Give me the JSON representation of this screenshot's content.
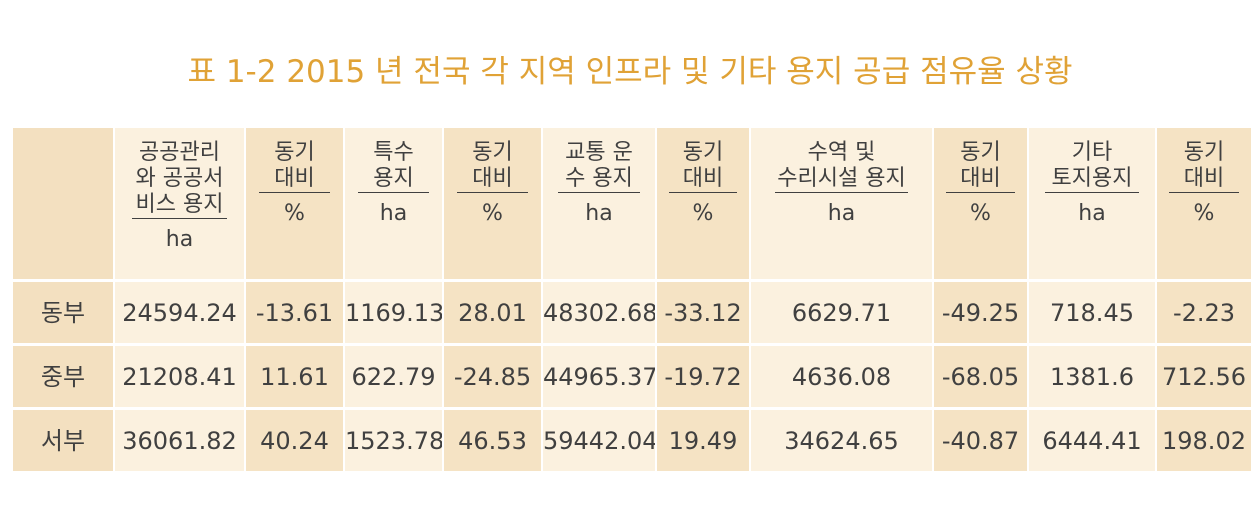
{
  "title": "표 1-2 2015 년 전국 각 지역 인프라 및 기타 용지 공급 점유율 상황",
  "table": {
    "headers": [
      {
        "name": "공공관리\n와 공공서\n비스 용지",
        "unit": "ha"
      },
      {
        "name": "동기\n대비",
        "unit": "%"
      },
      {
        "name": "특수\n용지",
        "unit": "ha"
      },
      {
        "name": "동기\n대비",
        "unit": "%"
      },
      {
        "name": "교통 운\n수 용지",
        "unit": "ha"
      },
      {
        "name": "동기\n대비",
        "unit": "%"
      },
      {
        "name": "수역 및\n수리시설 용지",
        "unit": "ha"
      },
      {
        "name": "동기\n대비",
        "unit": "%"
      },
      {
        "name": "기타\n토지용지",
        "unit": "ha"
      },
      {
        "name": "동기\n대비",
        "unit": "%"
      }
    ],
    "rows": [
      {
        "label": "동부",
        "values": [
          "24594.24",
          "-13.61",
          "1169.13",
          "28.01",
          "48302.68",
          "-33.12",
          "6629.71",
          "-49.25",
          "718.45",
          "-2.23"
        ]
      },
      {
        "label": "중부",
        "values": [
          "21208.41",
          "11.61",
          "622.79",
          "-24.85",
          "44965.37",
          "-19.72",
          "4636.08",
          "-68.05",
          "1381.6",
          "712.56"
        ]
      },
      {
        "label": "서부",
        "values": [
          "36061.82",
          "40.24",
          "1523.78",
          "46.53",
          "59442.04",
          "19.49",
          "34624.65",
          "-40.87",
          "6444.41",
          "198.02"
        ]
      }
    ]
  }
}
